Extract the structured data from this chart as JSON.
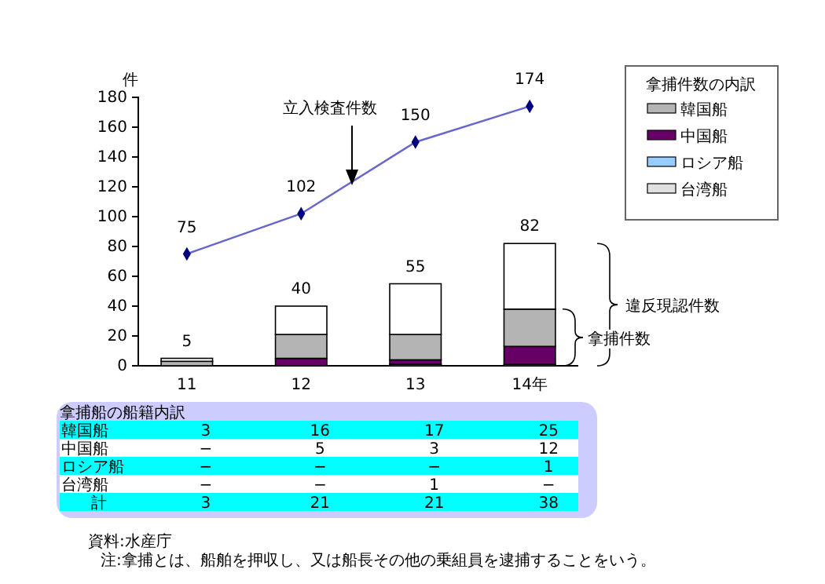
{
  "chart_data": {
    "type": "bar",
    "stacked": true,
    "ylabel": "件",
    "legend_title": "拿捕件数の内訳",
    "legend": "top right",
    "categories": [
      "11",
      "12",
      "13",
      "14年"
    ],
    "ylim": [
      0,
      180
    ],
    "yticks": [
      0,
      20,
      40,
      60,
      80,
      100,
      120,
      140,
      160,
      180
    ],
    "series": [
      {
        "name": "台湾船",
        "color": "#e0e0e0",
        "values": [
          0,
          0,
          1,
          0
        ],
        "value_labels": [
          "−",
          "−",
          "1",
          "−"
        ]
      },
      {
        "name": "ロシア船",
        "color": "#99ccff",
        "values": [
          0,
          0,
          0,
          1
        ],
        "value_labels": [
          "−",
          "−",
          "−",
          "1"
        ]
      },
      {
        "name": "中国船",
        "color": "#660066",
        "values": [
          0,
          5,
          3,
          12
        ],
        "value_labels": [
          "−",
          "5",
          "3",
          "12"
        ]
      },
      {
        "name": "韓国船",
        "color": "#b4b4b4",
        "values": [
          3,
          16,
          17,
          25
        ],
        "value_labels": [
          "3",
          "16",
          "17",
          "25"
        ]
      },
      {
        "color": "#ffffff",
        "values": [
          2,
          19,
          34,
          44
        ]
      },
      {
        "type": "line",
        "color": "#6666cc",
        "marker": "diamond",
        "values": [
          75,
          102,
          150,
          174
        ],
        "value_labels": [
          "75",
          "102",
          "150",
          "174"
        ]
      }
    ],
    "totals": [
      "5",
      "40",
      "55",
      "82"
    ],
    "annotations": [
      "立入検査件数",
      "違反現認件数",
      "拿捕件数",
      "拿捕船の船籍内訳",
      "計",
      "3",
      "21",
      "21",
      "38",
      "資料:水産庁",
      "注:拿捕とは、船舶を押収し、又は船長その他の乗組員を逮捕することをいう。"
    ]
  }
}
